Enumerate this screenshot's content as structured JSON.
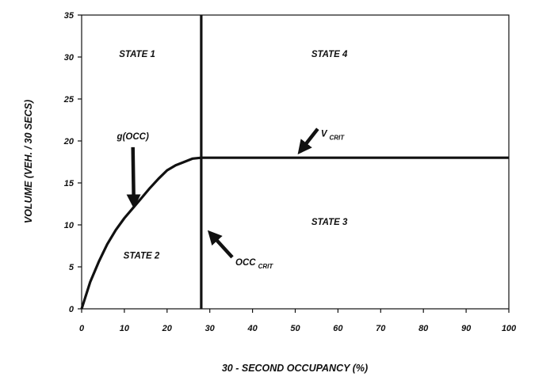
{
  "chart_data": {
    "type": "line",
    "xlabel": "30 - SECOND OCCUPANCY (%)",
    "ylabel": "VOLUME (VEH. / 30 SECS)",
    "xlim": [
      0,
      100
    ],
    "ylim": [
      0,
      35
    ],
    "xticks": [
      0,
      10,
      20,
      30,
      40,
      50,
      60,
      70,
      80,
      90,
      100
    ],
    "yticks": [
      0,
      5,
      10,
      15,
      20,
      25,
      30,
      35
    ],
    "grid": false,
    "series": [
      {
        "x": [
          0,
          2,
          4,
          6,
          8,
          10,
          12,
          14,
          16,
          18,
          20,
          22,
          24,
          26,
          28
        ],
        "y": [
          0,
          3.2,
          5.6,
          7.7,
          9.4,
          10.8,
          12.0,
          13.2,
          14.4,
          15.5,
          16.5,
          17.1,
          17.5,
          17.9,
          18.0
        ]
      },
      {
        "x": [
          28,
          100
        ],
        "y": [
          18,
          18
        ]
      },
      {
        "x": [
          28,
          28
        ],
        "y": [
          0,
          35
        ]
      }
    ],
    "annotations": [
      {
        "text": "STATE 1",
        "x": 13,
        "y": 30
      },
      {
        "text": "STATE 4",
        "x": 58,
        "y": 30
      },
      {
        "text": "STATE 3",
        "x": 58,
        "y": 10
      },
      {
        "text": "STATE 2",
        "x": 14,
        "y": 6
      },
      {
        "text": "g(OCC)",
        "x": 12,
        "y": 20.2,
        "arrow_to": [
          12.2,
          12.7
        ]
      },
      {
        "text": "V",
        "subscript": "CRIT",
        "x": 56,
        "y": 20.5,
        "arrow_to": [
          51.5,
          19.0
        ]
      },
      {
        "text": "OCC",
        "subscript": "CRIT",
        "x": 36,
        "y": 5.2,
        "arrow_to": [
          30.5,
          8.8
        ]
      }
    ]
  }
}
